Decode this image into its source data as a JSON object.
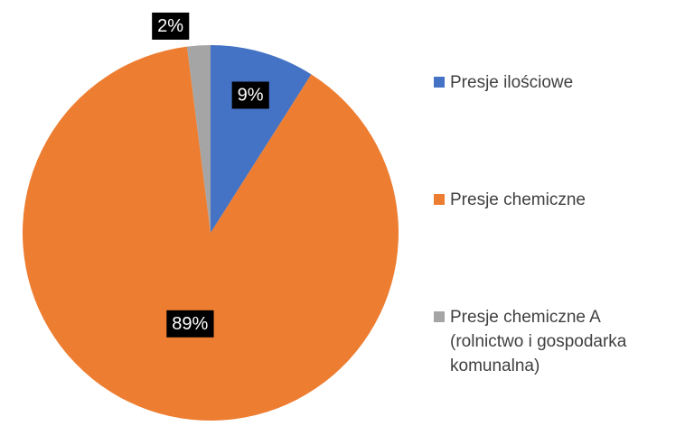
{
  "chart_data": {
    "type": "pie",
    "categories": [
      "Presje ilościowe",
      "Presje chemiczne",
      "Presje chemiczne A (rolnictwo i gospodarka komunalna)"
    ],
    "values": [
      9,
      89,
      2
    ],
    "value_labels": [
      "9%",
      "89%",
      "2%"
    ],
    "colors": [
      "#4472c4",
      "#ed7d31",
      "#a5a5a5"
    ],
    "legend": "right"
  }
}
